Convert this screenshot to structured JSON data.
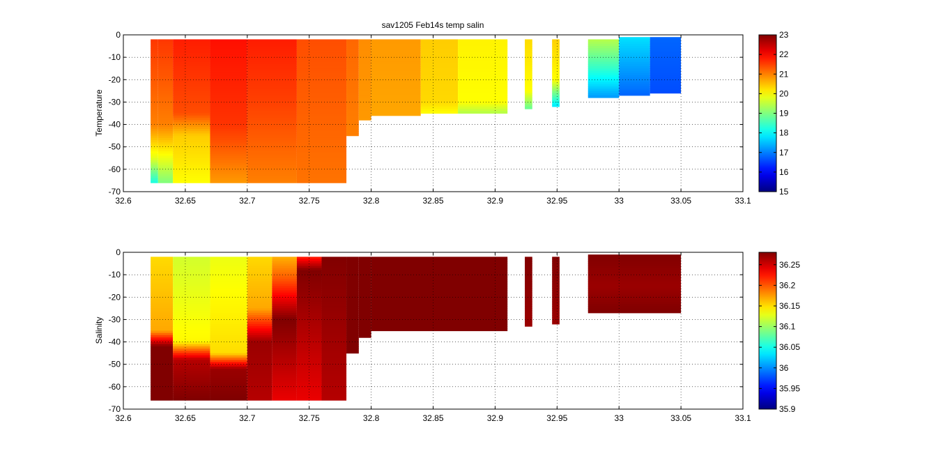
{
  "figure": {
    "title": "sav1205 Feb14s temp salin"
  },
  "colormap": "jet",
  "chart_data": [
    {
      "type": "heatmap",
      "id": "temperature",
      "title": "sav1205 Feb14s temp salin",
      "xlabel": "",
      "ylabel": "Temperature",
      "xlim": [
        32.6,
        33.1
      ],
      "ylim": [
        -70,
        0
      ],
      "xticks": [
        32.6,
        32.65,
        32.7,
        32.75,
        32.8,
        32.85,
        32.9,
        32.95,
        33,
        33.05,
        33.1
      ],
      "yticks": [
        0,
        -10,
        -20,
        -30,
        -40,
        -50,
        -60,
        -70
      ],
      "grid": true,
      "colorbar": {
        "min": 15,
        "max": 23,
        "ticks": [
          23,
          22,
          21,
          20,
          19,
          18,
          17,
          16,
          15
        ]
      },
      "segments": [
        {
          "x0": 32.622,
          "x1": 32.628,
          "top": -2,
          "bottom": -66,
          "layers": [
            {
              "depth": 0,
              "value": 21.6
            },
            {
              "depth": -40,
              "value": 21.0
            },
            {
              "depth": -55,
              "value": 19.8
            },
            {
              "depth": -66,
              "value": 18.2
            }
          ]
        },
        {
          "x0": 32.628,
          "x1": 32.64,
          "top": -2,
          "bottom": -66,
          "layers": [
            {
              "depth": 0,
              "value": 21.6
            },
            {
              "depth": -40,
              "value": 21.0
            },
            {
              "depth": -52,
              "value": 20.1
            },
            {
              "depth": -66,
              "value": 19.0
            }
          ]
        },
        {
          "x0": 32.64,
          "x1": 32.67,
          "top": -2,
          "bottom": -66,
          "layers": [
            {
              "depth": 0,
              "value": 21.8
            },
            {
              "depth": -35,
              "value": 21.4
            },
            {
              "depth": -45,
              "value": 20.4
            },
            {
              "depth": -66,
              "value": 20.0
            }
          ]
        },
        {
          "x0": 32.67,
          "x1": 32.7,
          "top": -2,
          "bottom": -66,
          "layers": [
            {
              "depth": 0,
              "value": 21.9
            },
            {
              "depth": -40,
              "value": 21.6
            },
            {
              "depth": -66,
              "value": 20.8
            }
          ]
        },
        {
          "x0": 32.7,
          "x1": 32.74,
          "top": -2,
          "bottom": -66,
          "layers": [
            {
              "depth": 0,
              "value": 21.8
            },
            {
              "depth": -30,
              "value": 21.5
            },
            {
              "depth": -66,
              "value": 21.0
            }
          ]
        },
        {
          "x0": 32.74,
          "x1": 32.78,
          "top": -2,
          "bottom": -66,
          "layers": [
            {
              "depth": 0,
              "value": 21.4
            },
            {
              "depth": -66,
              "value": 21.1
            }
          ]
        },
        {
          "x0": 32.78,
          "x1": 32.79,
          "top": -2,
          "bottom": -45,
          "layers": [
            {
              "depth": 0,
              "value": 21.2
            },
            {
              "depth": -45,
              "value": 21.0
            }
          ]
        },
        {
          "x0": 32.79,
          "x1": 32.8,
          "top": -2,
          "bottom": -38,
          "layers": [
            {
              "depth": 0,
              "value": 20.9
            },
            {
              "depth": -38,
              "value": 20.8
            }
          ]
        },
        {
          "x0": 32.8,
          "x1": 32.84,
          "top": -2,
          "bottom": -36,
          "layers": [
            {
              "depth": 0,
              "value": 20.8
            },
            {
              "depth": -36,
              "value": 20.7
            }
          ]
        },
        {
          "x0": 32.84,
          "x1": 32.87,
          "top": -2,
          "bottom": -35,
          "layers": [
            {
              "depth": 0,
              "value": 20.4
            },
            {
              "depth": -30,
              "value": 20.3
            },
            {
              "depth": -35,
              "value": 20.0
            }
          ]
        },
        {
          "x0": 32.87,
          "x1": 32.91,
          "top": -2,
          "bottom": -35,
          "layers": [
            {
              "depth": 0,
              "value": 20.1
            },
            {
              "depth": -30,
              "value": 20.0
            },
            {
              "depth": -35,
              "value": 19.4
            }
          ]
        },
        {
          "x0": 32.924,
          "x1": 32.93,
          "top": -2,
          "bottom": -33,
          "layers": [
            {
              "depth": 0,
              "value": 20.3
            },
            {
              "depth": -25,
              "value": 20.0
            },
            {
              "depth": -33,
              "value": 18.8
            }
          ]
        },
        {
          "x0": 32.946,
          "x1": 32.952,
          "top": -2,
          "bottom": -32,
          "layers": [
            {
              "depth": 0,
              "value": 20.4
            },
            {
              "depth": -20,
              "value": 20.0
            },
            {
              "depth": -32,
              "value": 17.8
            }
          ]
        },
        {
          "x0": 32.975,
          "x1": 33.0,
          "top": -2,
          "bottom": -28,
          "layers": [
            {
              "depth": 0,
              "value": 19.6
            },
            {
              "depth": -15,
              "value": 18.4
            },
            {
              "depth": -28,
              "value": 17.2
            }
          ]
        },
        {
          "x0": 33.0,
          "x1": 33.025,
          "top": -1,
          "bottom": -27,
          "layers": [
            {
              "depth": 0,
              "value": 17.8
            },
            {
              "depth": -27,
              "value": 16.8
            }
          ]
        },
        {
          "x0": 33.025,
          "x1": 33.05,
          "top": -1,
          "bottom": -26,
          "layers": [
            {
              "depth": 0,
              "value": 16.8
            },
            {
              "depth": -26,
              "value": 16.6
            }
          ]
        }
      ]
    },
    {
      "type": "heatmap",
      "id": "salinity",
      "title": "",
      "xlabel": "",
      "ylabel": "Salinity",
      "xlim": [
        32.6,
        33.1
      ],
      "ylim": [
        -70,
        0
      ],
      "xticks": [
        32.6,
        32.65,
        32.7,
        32.75,
        32.8,
        32.85,
        32.9,
        32.95,
        33,
        33.05,
        33.1
      ],
      "yticks": [
        0,
        -10,
        -20,
        -30,
        -40,
        -50,
        -60,
        -70
      ],
      "grid": true,
      "colorbar": {
        "min": 35.9,
        "max": 36.28,
        "ticks": [
          36.25,
          36.2,
          36.15,
          36.1,
          36.05,
          36,
          35.95,
          35.9
        ]
      },
      "segments": [
        {
          "x0": 32.622,
          "x1": 32.64,
          "top": -2,
          "bottom": -66,
          "layers": [
            {
              "depth": 0,
              "value": 36.15
            },
            {
              "depth": -35,
              "value": 36.17
            },
            {
              "depth": -42,
              "value": 36.28
            },
            {
              "depth": -66,
              "value": 36.28
            }
          ]
        },
        {
          "x0": 32.64,
          "x1": 32.67,
          "top": -2,
          "bottom": -66,
          "layers": [
            {
              "depth": 0,
              "value": 36.12
            },
            {
              "depth": -40,
              "value": 36.14
            },
            {
              "depth": -48,
              "value": 36.26
            },
            {
              "depth": -66,
              "value": 36.28
            }
          ]
        },
        {
          "x0": 32.67,
          "x1": 32.7,
          "top": -2,
          "bottom": -66,
          "layers": [
            {
              "depth": 0,
              "value": 36.13
            },
            {
              "depth": -45,
              "value": 36.15
            },
            {
              "depth": -52,
              "value": 36.27
            },
            {
              "depth": -66,
              "value": 36.28
            }
          ]
        },
        {
          "x0": 32.7,
          "x1": 32.72,
          "top": -2,
          "bottom": -66,
          "layers": [
            {
              "depth": 0,
              "value": 36.15
            },
            {
              "depth": -25,
              "value": 36.17
            },
            {
              "depth": -40,
              "value": 36.27
            },
            {
              "depth": -66,
              "value": 36.26
            }
          ]
        },
        {
          "x0": 32.72,
          "x1": 32.74,
          "top": -2,
          "bottom": -66,
          "layers": [
            {
              "depth": 0,
              "value": 36.16
            },
            {
              "depth": -12,
              "value": 36.2
            },
            {
              "depth": -30,
              "value": 36.28
            },
            {
              "depth": -66,
              "value": 36.24
            }
          ]
        },
        {
          "x0": 32.74,
          "x1": 32.76,
          "top": -2,
          "bottom": -66,
          "layers": [
            {
              "depth": 0,
              "value": 36.2
            },
            {
              "depth": -8,
              "value": 36.28
            },
            {
              "depth": -66,
              "value": 36.24
            }
          ]
        },
        {
          "x0": 32.76,
          "x1": 32.78,
          "top": -2,
          "bottom": -66,
          "layers": [
            {
              "depth": 0,
              "value": 36.28
            },
            {
              "depth": -66,
              "value": 36.26
            }
          ]
        },
        {
          "x0": 32.78,
          "x1": 32.79,
          "top": -2,
          "bottom": -45,
          "layers": [
            {
              "depth": 0,
              "value": 36.28
            },
            {
              "depth": -45,
              "value": 36.28
            }
          ]
        },
        {
          "x0": 32.79,
          "x1": 32.8,
          "top": -2,
          "bottom": -38,
          "layers": [
            {
              "depth": 0,
              "value": 36.28
            },
            {
              "depth": -38,
              "value": 36.28
            }
          ]
        },
        {
          "x0": 32.8,
          "x1": 32.91,
          "top": -2,
          "bottom": -35,
          "layers": [
            {
              "depth": 0,
              "value": 36.28
            },
            {
              "depth": -35,
              "value": 36.28
            }
          ]
        },
        {
          "x0": 32.924,
          "x1": 32.93,
          "top": -2,
          "bottom": -33,
          "layers": [
            {
              "depth": 0,
              "value": 36.28
            },
            {
              "depth": -33,
              "value": 36.27
            }
          ]
        },
        {
          "x0": 32.946,
          "x1": 32.952,
          "top": -2,
          "bottom": -32,
          "layers": [
            {
              "depth": 0,
              "value": 36.28
            },
            {
              "depth": -32,
              "value": 36.27
            }
          ]
        },
        {
          "x0": 32.975,
          "x1": 33.05,
          "top": -1,
          "bottom": -27,
          "layers": [
            {
              "depth": 0,
              "value": 36.28
            },
            {
              "depth": -15,
              "value": 36.27
            },
            {
              "depth": -27,
              "value": 36.28
            }
          ]
        }
      ]
    }
  ]
}
